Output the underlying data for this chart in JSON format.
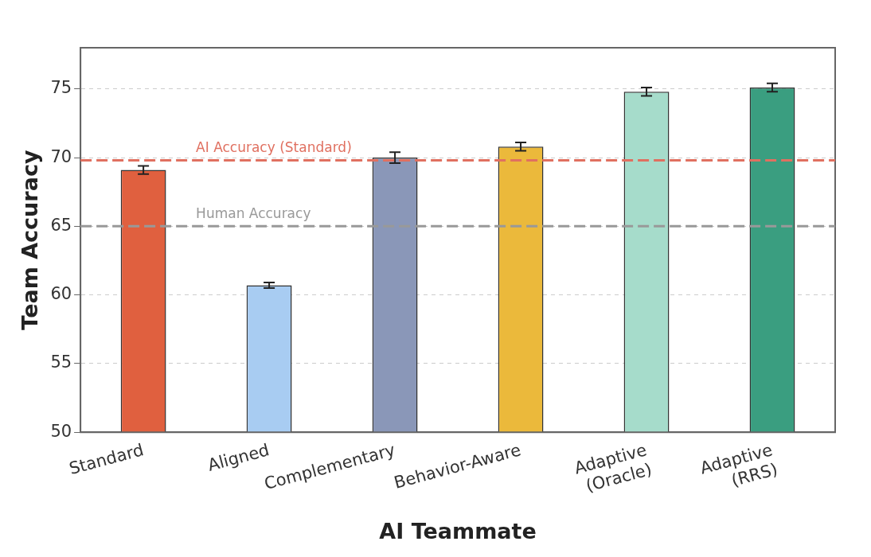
{
  "chart_data": {
    "type": "bar",
    "xlabel": "AI Teammate",
    "ylabel": "Team Accuracy",
    "categories": [
      "Standard",
      "Aligned",
      "Complementary",
      "Behavior-Aware",
      "Adaptive\n(Oracle)",
      "Adaptive\n(RRS)"
    ],
    "values": [
      69.1,
      60.7,
      70.0,
      70.8,
      74.8,
      75.1
    ],
    "errors": [
      0.3,
      0.2,
      0.4,
      0.3,
      0.3,
      0.3
    ],
    "colors": [
      "#e0603f",
      "#a8ccf2",
      "#8a97b8",
      "#ebb93b",
      "#a6dccb",
      "#3a9e80"
    ],
    "ylim": [
      50,
      78
    ],
    "yticks": [
      50,
      55,
      60,
      65,
      70,
      75
    ],
    "grid": "y",
    "ref_lines": [
      {
        "axis": "y",
        "value": 69.8,
        "label": "AI Accuracy (Standard)",
        "color": "#e07060",
        "line_style": "dashed"
      },
      {
        "axis": "y",
        "value": 65,
        "label": "Human Accuracy",
        "color": "#999999",
        "line_style": "dashed"
      }
    ]
  }
}
